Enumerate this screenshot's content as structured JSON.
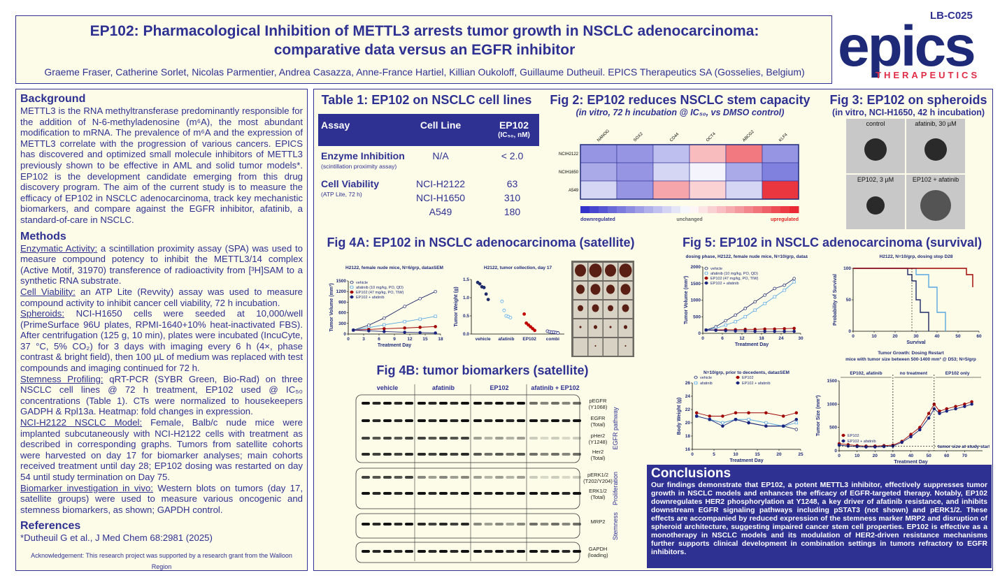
{
  "header": {
    "title_line1": "EP102: Pharmacological Inhibition of METTL3 arrests tumor growth in NSCLC adenocarcinoma:",
    "title_line2": "comparative data versus an EGFR inhibitor",
    "authors": "Graeme Fraser, Catherine Sorlet, Nicolas Parmentier, Andrea Casazza, Anne-France Hartiel, Killian Oukoloff, Guillaume Dutheuil. EPICS Therapeutics SA (Gosselies, Belgium)",
    "poster_id": "LB-C025",
    "logo_text": "epics",
    "logo_sub": "THERAPEUTICS"
  },
  "background": {
    "heading": "Background",
    "text": "METTL3 is the RNA methyltransferase predominantly responsible for the addition of N-6-methyladenosine (m⁶A), the most abundant modification to mRNA. The prevalence of m⁶A and the expression of METTL3 correlate with the progression of various cancers. EPICS has discovered and optimized small molecule inhibitors of METTL3 previously shown to be effective in AML and solid tumor models*. EP102 is the development candidate emerging from this drug discovery program. The aim of the current study is to measure the efficacy of EP102 in NSCLC adenocarcinoma, track key mechanistic biomarkers, and compare against the EGFR inhibitor, afatinib, a standard-of-care in NSCLC."
  },
  "methods": {
    "heading": "Methods",
    "items": [
      {
        "label": "Enzymatic Activity:",
        "text": "a scintillation proximity assay (SPA) was used to measure compound potency to inhibit the METTL3/14 complex (Active Motif, 31970) transference of radioactivity from [³H]SAM to a synthetic RNA substrate."
      },
      {
        "label": "Cell Viability:",
        "text": "an ATP Lite (Revvity) assay was used to measure compound activity to inhibit cancer cell viability, 72 h incubation."
      },
      {
        "label": "Spheroids:",
        "text": "NCI-H1650 cells were seeded at 10,000/well (PrimeSurface 96U plates, RPMI-1640+10% heat-inactivated FBS). After centrifugation (125 g, 10 min), plates were incubated (IncuCyte, 37 °C, 5% CO₂) for 3 days with imaging every 6 h (4×, phase contrast & bright field), then 100 µL of medium was replaced with test compounds and imaging continued for 72 h."
      },
      {
        "label": "Stemness Profiling:",
        "text": "qRT-PCR (SYBR Green, Bio-Rad) on three NSCLC cell lines @ 72 h treatment, EP102 used @ IC₅₀ concentrations (Table 1). CTs were normalized to housekeepers GADPH & Rpl13a. Heatmap: fold changes in expression."
      },
      {
        "label": "NCI-H2122 NSCLC Model:",
        "text": "Female, Balb/c nude mice were implanted subcutaneously with NCI-H2122 cells with treatment as described in corresponding graphs. Tumors from satellite cohorts were harvested on day 17 for biomarker analyses; main cohorts received treatment until day 28; EP102 dosing was restarted on day 54 until study termination on Day 75."
      },
      {
        "label": "Biomarker investigation in vivo:",
        "text": "Western blots on tumors (day 17, satellite groups) were used to measure various oncogenic and stemness biomarkers, as shown; GAPDH control."
      }
    ]
  },
  "references": {
    "heading": "References",
    "text": "*Dutheuil G et al., J Med Chem 68:2981 (2025)"
  },
  "acknowledgement": "Acknowledgement: This research project was supported by a research grant from the Walloon Region",
  "table1": {
    "title": "Table 1: EP102 on NSCLC cell lines",
    "columns": [
      "Assay",
      "Cell Line",
      "EP102"
    ],
    "unit": "(IC₅₀, nM)",
    "rows": [
      {
        "assay": "Enzyme Inhibition",
        "note": "(scintillation proximity assay)",
        "lines": [
          {
            "cell": "N/A",
            "value": "< 2.0"
          }
        ]
      },
      {
        "assay": "Cell Viability",
        "note": "(ATP Lite, 72 h)",
        "lines": [
          {
            "cell": "NCI-H2122",
            "value": 63
          },
          {
            "cell": "NCI-H1650",
            "value": 310
          },
          {
            "cell": "A549",
            "value": 180
          }
        ]
      }
    ]
  },
  "fig2": {
    "title": "Fig 2: EP102 reduces NSCLC stem capacity",
    "subtitle": "(in vitro, 72 h incubation @ IC₅₀, vs DMSO control)",
    "columns": [
      "NANOG",
      "SOX2",
      "CD44",
      "OCT4",
      "ABCG2",
      "KLF4"
    ],
    "rows": [
      "NCIH2122",
      "NCIH1650",
      "A549"
    ],
    "values": [
      [
        -0.5,
        -0.5,
        -0.3,
        0.3,
        0.6,
        -0.5
      ],
      [
        -0.4,
        -0.5,
        -0.2,
        -0.05,
        -0.4,
        -0.6
      ],
      [
        -0.2,
        -0.5,
        0.4,
        0.2,
        -0.2,
        0.9
      ]
    ],
    "legend": [
      "downregulated",
      "unchanged",
      "upregulated"
    ]
  },
  "fig3": {
    "title": "Fig 3: EP102 on spheroids",
    "subtitle": "(in vitro, NCI-H1650, 42 h incubation)",
    "panels": [
      "control",
      "afatinib, 30 µM",
      "EP102, 3 µM",
      "EP102 + afatinib"
    ]
  },
  "fig4a": {
    "title": "Fig 4A: EP102 in NSCLC adenocarcinoma (satellite)",
    "volume": {
      "type": "line",
      "title": "H2122, female nude mice, N=6/grp, data±SEM",
      "xlabel": "Treatment Day",
      "ylabel": "Tumor Volume (mm³)",
      "xlim": [
        0,
        18
      ],
      "ylim": [
        0,
        1500
      ],
      "xticks": [
        0,
        3,
        6,
        9,
        12,
        15,
        18
      ],
      "yticks": [
        0,
        300,
        600,
        900,
        1200,
        1500
      ],
      "legend": "top-left",
      "x": [
        1,
        4,
        7,
        11,
        14,
        17
      ],
      "series": [
        {
          "name": "vehicle",
          "color": "#1f2a6b",
          "marker": "open",
          "values": [
            110,
            250,
            450,
            780,
            1000,
            1200
          ]
        },
        {
          "name": "afatinib (10 mg/kg, PO, QD)",
          "color": "#5aa6e0",
          "marker": "square",
          "values": [
            110,
            180,
            260,
            350,
            420,
            500
          ]
        },
        {
          "name": "EP102 (47 mg/kg, PO, TIW)",
          "color": "#a00000",
          "marker": "filled",
          "values": [
            110,
            130,
            150,
            170,
            190,
            210
          ]
        },
        {
          "name": "EP102 + afatinib",
          "color": "#1a237e",
          "marker": "filled",
          "values": [
            110,
            90,
            70,
            50,
            40,
            30
          ]
        }
      ]
    },
    "weight": {
      "type": "dot",
      "title": "H2122, tumor collection, day 17",
      "ylabel": "Tumor Weight (g)",
      "categories": [
        "vehicle",
        "afatinib",
        "EP102",
        "combi"
      ],
      "ylim": [
        0,
        1.5
      ],
      "yticks": [
        {
          "value": 0,
          "label": "0.0"
        },
        {
          "value": 0.5,
          "label": "0.5"
        },
        {
          "value": 1,
          "label": "1.0"
        },
        {
          "value": 1.5,
          "label": "1.5"
        }
      ],
      "colors": [
        "#1f2a6b",
        "#5aa6e0",
        "#c00000",
        "#1a237e"
      ],
      "groups": [
        [
          1.42,
          1.38,
          1.3,
          1.28,
          1.1,
          0.95
        ],
        [
          0.9,
          0.65,
          0.5,
          0.48,
          0.45
        ],
        [
          0.55,
          0.3,
          0.25,
          0.2,
          0.15,
          0.1
        ],
        [
          0.08,
          0.06,
          0.05,
          0.05,
          0.04,
          0.03
        ]
      ]
    }
  },
  "fig4b": {
    "title": "Fig 4B: tumor biomarkers (satellite)",
    "groups": [
      "vehicle",
      "afatinib",
      "EP102",
      "afatinib + EP102"
    ],
    "bands": [
      {
        "label": "pEGFR",
        "sub": "(Y1068)"
      },
      {
        "label": "EGFR",
        "sub": "(Total)"
      },
      {
        "label": "pHer2",
        "sub": "(Y1248)"
      },
      {
        "label": "Her2",
        "sub": "(Total)"
      },
      {
        "label": "pERK1/2",
        "sub": "(T202/Y204)"
      },
      {
        "label": "ERK1/2",
        "sub": "(Total)"
      },
      {
        "label": "MRP2",
        "sub": ""
      },
      {
        "label": "GAPDH",
        "sub": "(loading)"
      }
    ],
    "sections": [
      "EGFR pathway",
      "Proliferation",
      "Stemness"
    ]
  },
  "fig5": {
    "title": "Fig 5: EP102 in NSCLC adenocarcinoma (survival)",
    "volume": {
      "type": "line",
      "title": "dosing phase, H2122, female nude mice, N=10/grp, data±SEM",
      "xlabel": "Treatment Day",
      "ylabel": "Tumor Volume (mm³)",
      "xlim": [
        0,
        30
      ],
      "ylim": [
        0,
        2000
      ],
      "xticks": [
        0,
        6,
        12,
        18,
        24,
        30
      ],
      "yticks": [
        0,
        500,
        1000,
        1500,
        2000
      ],
      "legend": "top-left",
      "x": [
        1,
        4,
        7,
        10,
        13,
        16,
        19,
        22,
        25,
        28
      ],
      "series": [
        {
          "name": "vehicle",
          "color": "#1f2a6b",
          "marker": "open",
          "values": [
            100,
            200,
            380,
            550,
            750,
            950,
            1150,
            1350,
            1450,
            1650
          ]
        },
        {
          "name": "afatinib (10 mg/kg, PO, QD)",
          "color": "#5aa6e0",
          "marker": "square",
          "values": [
            100,
            150,
            250,
            350,
            500,
            700,
            900,
            1100,
            1300,
            1550
          ]
        },
        {
          "name": "EP102 (47 mg/kg, PO, TIW)",
          "color": "#a00000",
          "marker": "filled",
          "values": [
            100,
            100,
            110,
            110,
            120,
            120,
            130,
            130,
            140,
            150
          ]
        },
        {
          "name": "EP102 + afatinib",
          "color": "#1a237e",
          "marker": "filled",
          "values": [
            100,
            90,
            80,
            70,
            70,
            60,
            60,
            60,
            60,
            60
          ]
        }
      ]
    },
    "survival": {
      "type": "step",
      "title": "H2122, N=10/grp, dosing stop D28",
      "xlabel": "Survival",
      "ylabel": "Probability of Survival",
      "xlim": [
        0,
        60
      ],
      "ylim": [
        0,
        100
      ],
      "xticks": [
        0,
        10,
        20,
        30,
        40,
        50,
        60
      ],
      "yticks": [
        0,
        50,
        100
      ],
      "series": [
        {
          "color": "#1f2a6b",
          "x": [
            0,
            26,
            28,
            30,
            32,
            36
          ],
          "values": [
            100,
            90,
            80,
            50,
            30,
            0
          ]
        },
        {
          "color": "#5aa6e0",
          "x": [
            0,
            30,
            36,
            40,
            44
          ],
          "values": [
            100,
            90,
            70,
            30,
            0
          ]
        },
        {
          "color": "#a00000",
          "x": [
            0,
            54,
            57
          ],
          "values": [
            100,
            90,
            70
          ]
        }
      ]
    },
    "bodyweight": {
      "type": "line",
      "title": "N=10/grp, prior to decedents, data±SEM",
      "xlabel": "Treatment Day",
      "ylabel": "Body Weight (g)",
      "xlim": [
        0,
        25
      ],
      "ylim": [
        16,
        26
      ],
      "xticks": [
        0,
        5,
        10,
        15,
        20,
        25
      ],
      "yticks": [
        16,
        18,
        20,
        22,
        24,
        26
      ],
      "legend": "top",
      "x": [
        1,
        4,
        7,
        10,
        13,
        17,
        21,
        24
      ],
      "series": [
        {
          "name": "vehicle",
          "color": "#1f2a6b",
          "marker": "open",
          "values": [
            21,
            20.5,
            20,
            20.5,
            20,
            19.5,
            19.5,
            19
          ]
        },
        {
          "name": "EP102",
          "color": "#a00000",
          "marker": "filled",
          "values": [
            21.5,
            21,
            21,
            21.5,
            21.5,
            21.5,
            21,
            21.5
          ]
        },
        {
          "name": "afatinib",
          "color": "#5aa6e0",
          "marker": "square",
          "values": [
            21,
            20.5,
            20,
            20.5,
            20.5,
            20,
            19.5,
            20
          ]
        },
        {
          "name": "EP102 + afatinib",
          "color": "#1a237e",
          "marker": "filled",
          "values": [
            21,
            20.5,
            19.5,
            20.5,
            20,
            19.5,
            19.5,
            20.5
          ]
        }
      ]
    },
    "restart": {
      "type": "line",
      "title": "Tumor Growth: Dosing Restart",
      "subtitle": "mice with tumor size between 500-1400 mm³ @ D53; N=5/grp",
      "xlabel": "Treatment Day",
      "ylabel": "Tumor Size (mm³)",
      "xlim": [
        0,
        80
      ],
      "ylim": [
        0,
        1500
      ],
      "xticks": [
        0,
        10,
        20,
        30,
        40,
        50,
        60,
        70
      ],
      "yticks": [
        0,
        500,
        1000,
        1500
      ],
      "legend": "bottom-left",
      "x": [
        0,
        5,
        10,
        15,
        20,
        25,
        30,
        35,
        40,
        45,
        50,
        53,
        56,
        60,
        65,
        70,
        74
      ],
      "series": [
        {
          "name": "EP102",
          "color": "#a00000",
          "marker": "filled",
          "values": [
            150,
            130,
            110,
            100,
            100,
            110,
            120,
            200,
            350,
            500,
            800,
            1000,
            850,
            900,
            950,
            1000,
            1050
          ]
        },
        {
          "name": "EP102 + afatinib",
          "color": "#1a237e",
          "marker": "filled",
          "values": [
            120,
            100,
            90,
            80,
            80,
            90,
            100,
            180,
            300,
            450,
            700,
            900,
            800,
            850,
            900,
            950,
            1000
          ]
        }
      ],
      "annotations": [
        "EP102, afatinib",
        "no treatment",
        "EP102 only",
        "tumor size at study start"
      ]
    }
  },
  "conclusions": {
    "heading": "Conclusions",
    "text": "Our findings demonstrate that EP102, a potent METTL3 inhibitor, effectively suppresses tumor growth in NSCLC models and enhances the efficacy of EGFR-targeted therapy. Notably, EP102 downregulates HER2 phosphorylation at Y1248, a key driver of afatinib resistance, and inhibits downstream EGFR signaling pathways including pSTAT3 (not shown) and pERK1/2. These effects are accompanied by reduced expression of the stemness marker MRP2 and disruption of spheroid architecture, suggesting impaired cancer stem cell properties. EP102 is effective as a monotherapy in NSCLC models and its modulation of HER2-driven resistance mechanisms further supports clinical development in combination settings in tumors refractory to EGFR inhibitors."
  }
}
